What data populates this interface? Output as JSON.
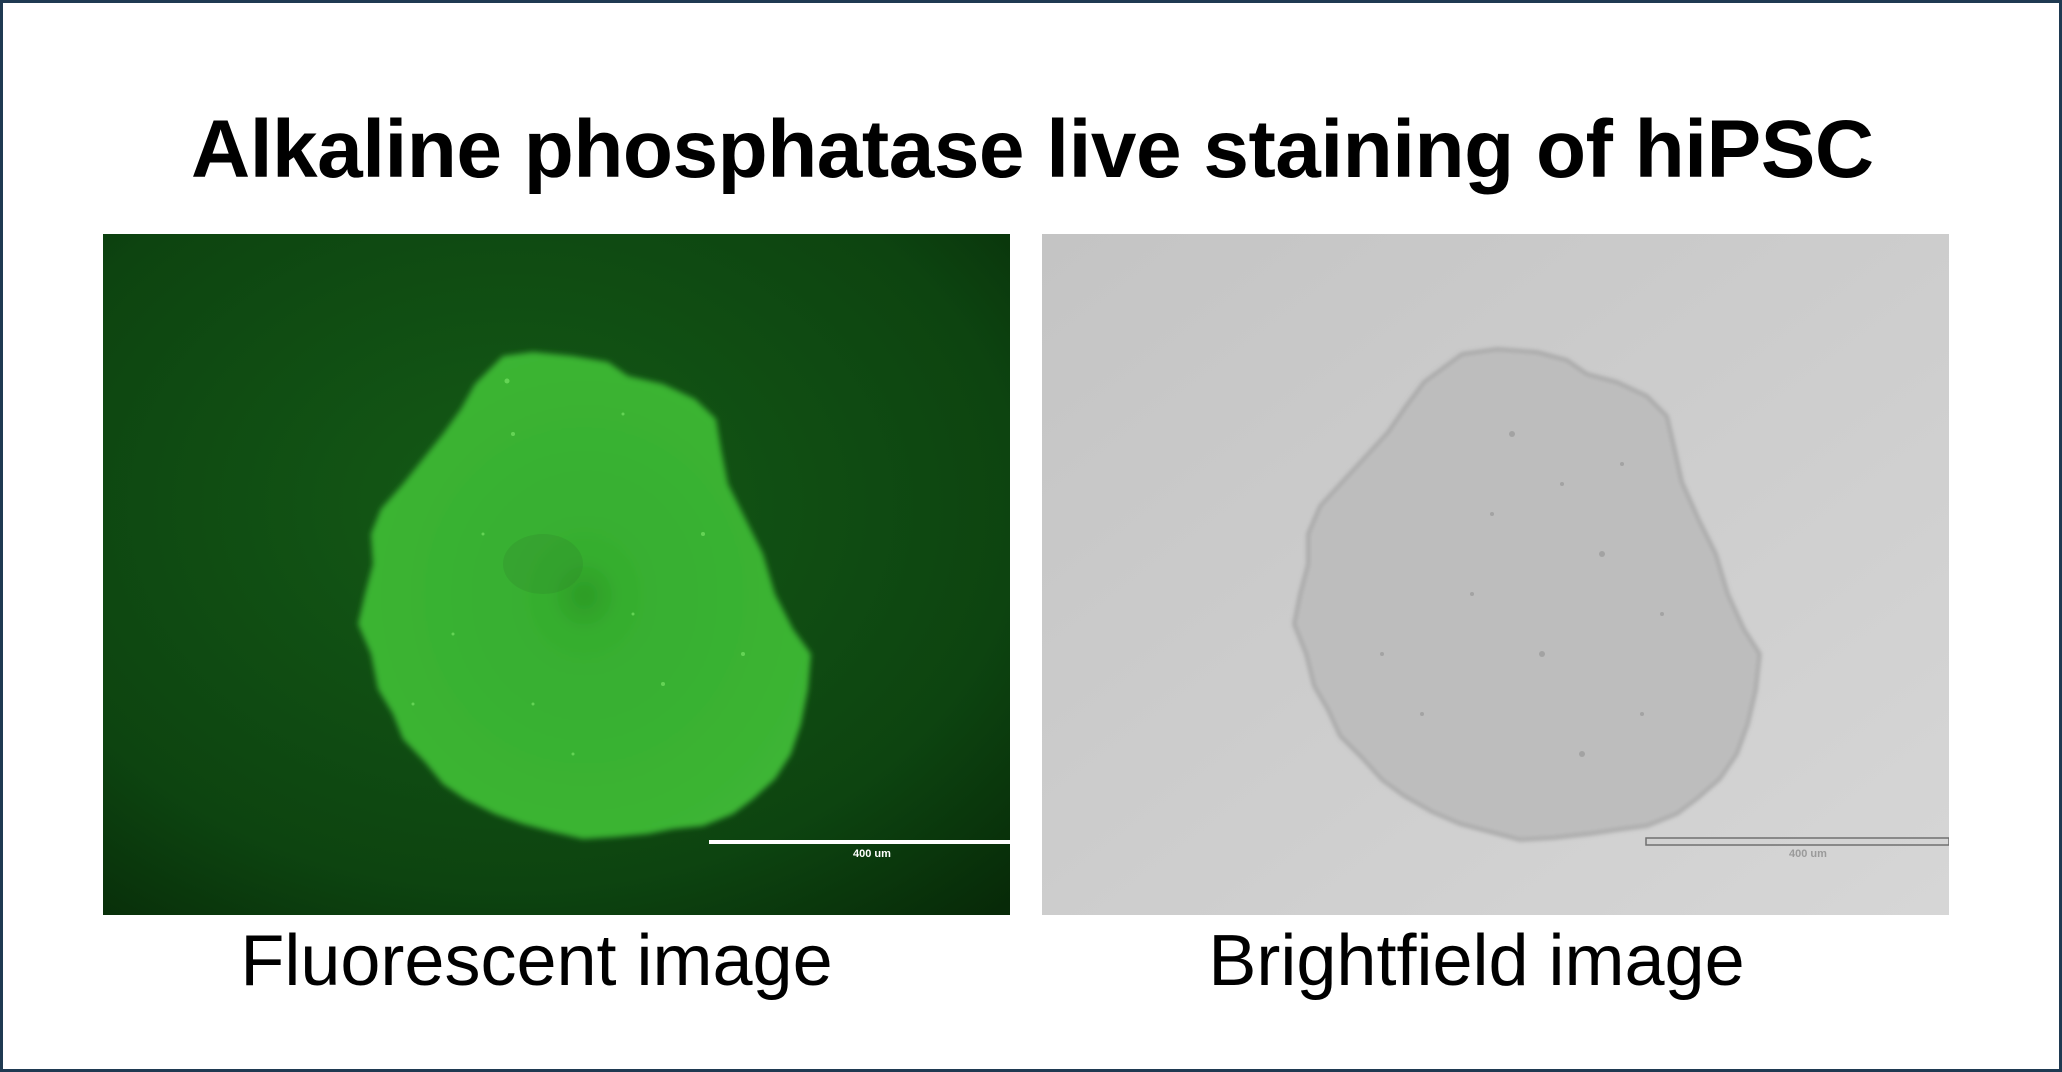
{
  "slide": {
    "title": "Alkaline phosphatase live staining of hiPSC",
    "panels": [
      {
        "caption": "Fluorescent image",
        "scale_bar_label": "400 um",
        "background_color": "#0f4a12",
        "colony_color": "#37b32e"
      },
      {
        "caption": "Brightfield image",
        "scale_bar_label": "400 um",
        "background_color": "#c8c8c8",
        "colony_color": "#b9b9b9"
      }
    ],
    "border_color": "#1f3a52"
  }
}
